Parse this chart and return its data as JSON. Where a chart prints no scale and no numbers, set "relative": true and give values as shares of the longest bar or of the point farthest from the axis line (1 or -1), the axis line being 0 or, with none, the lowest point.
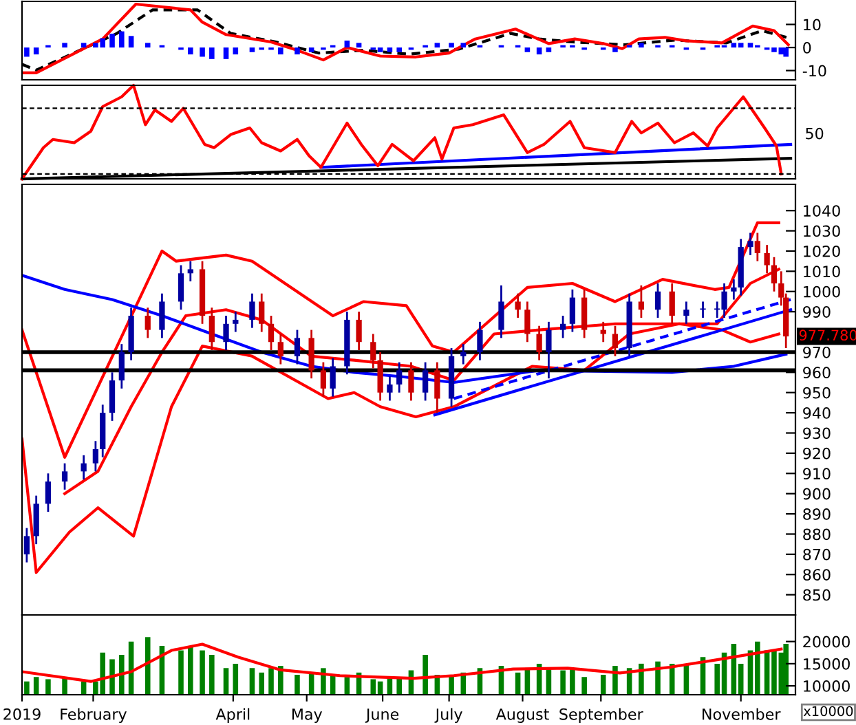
{
  "chart_data": [
    {
      "type": "line",
      "xlim": [
        "2019-01-02",
        "2019-11-24"
      ],
      "ylim": [
        -14,
        20
      ],
      "yticks": [
        10,
        0,
        -10
      ],
      "tick_labels": "y",
      "series": [
        {
          "type": "bar",
          "color": "#0000ff",
          "x": [
            "2019-01-04",
            "2019-01-08",
            "2019-01-13",
            "2019-01-20",
            "2019-01-28",
            "2019-02-02",
            "2019-02-05",
            "2019-02-09",
            "2019-02-13",
            "2019-02-17",
            "2019-02-24",
            "2019-03-02",
            "2019-03-10",
            "2019-03-14",
            "2019-03-19",
            "2019-03-23",
            "2019-03-29",
            "2019-04-02",
            "2019-04-09",
            "2019-04-13",
            "2019-04-17",
            "2019-04-21",
            "2019-04-28",
            "2019-05-04",
            "2019-05-09",
            "2019-05-13",
            "2019-05-19",
            "2019-05-24",
            "2019-05-30",
            "2019-06-02",
            "2019-06-06",
            "2019-06-10",
            "2019-06-15",
            "2019-06-21",
            "2019-06-26",
            "2019-07-02",
            "2019-07-07",
            "2019-07-14",
            "2019-07-23",
            "2019-07-30",
            "2019-08-03",
            "2019-08-08",
            "2019-08-12",
            "2019-08-18",
            "2019-08-22",
            "2019-08-27",
            "2019-09-04",
            "2019-09-09",
            "2019-09-15",
            "2019-09-20",
            "2019-09-27",
            "2019-10-03",
            "2019-10-09",
            "2019-10-16",
            "2019-10-22",
            "2019-10-25",
            "2019-10-29",
            "2019-11-01",
            "2019-11-05",
            "2019-11-08",
            "2019-11-12",
            "2019-11-15",
            "2019-11-18",
            "2019-11-20"
          ],
          "values": [
            -4,
            -3,
            1,
            2,
            2,
            2,
            4,
            6,
            7,
            5,
            2,
            1,
            -1,
            -3,
            -4,
            -5,
            -5,
            -3,
            -2,
            -1,
            -1,
            -3,
            -3,
            -2,
            -1,
            1,
            3,
            2,
            -1,
            -2,
            -2,
            -2,
            -1,
            1,
            2,
            2,
            2,
            1,
            1,
            1,
            -2,
            -3,
            -2,
            1,
            1,
            -1,
            -1,
            -2,
            1,
            2,
            1,
            1,
            -1,
            -1,
            1,
            1,
            2,
            2,
            2,
            1,
            -1,
            -2,
            -3,
            -4
          ]
        },
        {
          "type": "line",
          "color": "#000000",
          "line_style": "dashed",
          "x": [
            "2019-01-02",
            "2019-01-08",
            "2019-02-11",
            "2019-02-26",
            "2019-03-17",
            "2019-03-31",
            "2019-04-19",
            "2019-05-07",
            "2019-05-26",
            "2019-06-14",
            "2019-07-05",
            "2019-07-27",
            "2019-08-08",
            "2019-08-22",
            "2019-09-13",
            "2019-10-04",
            "2019-10-26",
            "2019-11-10",
            "2019-11-21"
          ],
          "values": [
            -7.3,
            -9.8,
            6.1,
            16.3,
            16.3,
            6.1,
            2.4,
            -2.4,
            -1.2,
            -2.9,
            -0.7,
            6.1,
            3.7,
            2.4,
            1.2,
            3.2,
            2,
            7.3,
            4.2
          ]
        },
        {
          "type": "line",
          "color": "#ff0000",
          "line_style": "solid",
          "x": [
            "2019-01-02",
            "2019-01-08",
            "2019-02-05",
            "2019-02-19",
            "2019-03-14",
            "2019-03-19",
            "2019-03-29",
            "2019-04-17",
            "2019-04-28",
            "2019-05-09",
            "2019-05-19",
            "2019-06-02",
            "2019-06-17",
            "2019-07-01",
            "2019-07-12",
            "2019-07-29",
            "2019-08-12",
            "2019-08-23",
            "2019-09-04",
            "2019-09-12",
            "2019-09-19",
            "2019-09-30",
            "2019-10-09",
            "2019-10-24",
            "2019-11-06",
            "2019-11-15",
            "2019-11-21"
          ],
          "values": [
            -11,
            -11,
            3.7,
            18.8,
            16.3,
            11,
            5.6,
            2.4,
            -1.2,
            -5.4,
            0,
            -3.7,
            -4.1,
            -2.4,
            3.7,
            8,
            1.7,
            3.7,
            1.7,
            -0.5,
            3.7,
            4.4,
            2.9,
            2,
            9.3,
            7.3,
            1.2
          ]
        }
      ]
    },
    {
      "type": "line",
      "relative": true,
      "xlim": [
        "2019-01-02",
        "2019-11-24"
      ],
      "tick_labels": false,
      "annotations": [
        "50"
      ],
      "ref_lines": [
        {
          "axis": "y",
          "value": 0.754,
          "color": "#000000",
          "line_style": "dashed"
        },
        {
          "axis": "y",
          "value": 0.053,
          "color": "#000000",
          "line_style": "dashed"
        }
      ],
      "series": [
        {
          "color": "#000000",
          "x": [
            "2019-01-02",
            "2019-11-22"
          ],
          "values": [
            0,
            0.219
          ]
        },
        {
          "color": "#0000ff",
          "x": [
            "2019-05-08",
            "2019-11-22"
          ],
          "values": [
            0.123,
            0.368
          ]
        },
        {
          "color": "#ff0000",
          "x": [
            "2019-01-02",
            "2019-01-11",
            "2019-01-15",
            "2019-01-24",
            "2019-01-31",
            "2019-02-05",
            "2019-02-13",
            "2019-02-18",
            "2019-02-23",
            "2019-02-27",
            "2019-03-06",
            "2019-03-11",
            "2019-03-20",
            "2019-03-24",
            "2019-03-31",
            "2019-04-08",
            "2019-04-13",
            "2019-04-21",
            "2019-04-28",
            "2019-05-03",
            "2019-05-08",
            "2019-05-19",
            "2019-05-25",
            "2019-06-01",
            "2019-06-07",
            "2019-06-16",
            "2019-06-25",
            "2019-06-28",
            "2019-07-03",
            "2019-07-11",
            "2019-07-24",
            "2019-08-03",
            "2019-08-10",
            "2019-08-21",
            "2019-08-27",
            "2019-09-09",
            "2019-09-16",
            "2019-09-20",
            "2019-09-27",
            "2019-10-04",
            "2019-10-12",
            "2019-10-18",
            "2019-10-22",
            "2019-11-02",
            "2019-11-11",
            "2019-11-16",
            "2019-11-18"
          ],
          "values": [
            0,
            0.333,
            0.421,
            0.386,
            0.509,
            0.772,
            0.877,
            1,
            0.579,
            0.737,
            0.614,
            0.754,
            0.368,
            0.333,
            0.474,
            0.544,
            0.386,
            0.298,
            0.421,
            0.246,
            0.123,
            0.596,
            0.368,
            0.14,
            0.368,
            0.193,
            0.439,
            0.211,
            0.544,
            0.579,
            0.684,
            0.281,
            0.368,
            0.614,
            0.333,
            0.281,
            0.614,
            0.491,
            0.596,
            0.386,
            0.491,
            0.351,
            0.544,
            0.877,
            0.544,
            0.351,
            0.053
          ]
        }
      ]
    },
    {
      "type": "candlestick",
      "xlim": [
        "2019-01-02",
        "2019-11-24"
      ],
      "ylim": [
        840,
        1053
      ],
      "yticks": [
        850,
        860,
        870,
        880,
        890,
        900,
        910,
        920,
        930,
        940,
        950,
        960,
        970,
        990,
        1000,
        1010,
        1020,
        1030,
        1040
      ],
      "tick_labels": "y",
      "x": [
        "2019-01-04",
        "2019-01-08",
        "2019-01-13",
        "2019-01-20",
        "2019-01-28",
        "2019-02-02",
        "2019-02-05",
        "2019-02-09",
        "2019-02-13",
        "2019-02-17",
        "2019-02-24",
        "2019-03-02",
        "2019-03-10",
        "2019-03-14",
        "2019-03-19",
        "2019-03-23",
        "2019-03-29",
        "2019-04-02",
        "2019-04-09",
        "2019-04-13",
        "2019-04-17",
        "2019-04-21",
        "2019-04-28",
        "2019-05-04",
        "2019-05-09",
        "2019-05-13",
        "2019-05-19",
        "2019-05-24",
        "2019-05-30",
        "2019-06-02",
        "2019-06-06",
        "2019-06-10",
        "2019-06-15",
        "2019-06-21",
        "2019-06-26",
        "2019-07-02",
        "2019-07-07",
        "2019-07-14",
        "2019-07-23",
        "2019-07-30",
        "2019-08-03",
        "2019-08-08",
        "2019-08-12",
        "2019-08-18",
        "2019-08-22",
        "2019-08-27",
        "2019-09-04",
        "2019-09-09",
        "2019-09-15",
        "2019-09-20",
        "2019-09-27",
        "2019-10-03",
        "2019-10-09",
        "2019-10-16",
        "2019-10-22",
        "2019-10-25",
        "2019-10-29",
        "2019-11-01",
        "2019-11-05",
        "2019-11-08",
        "2019-11-12",
        "2019-11-15",
        "2019-11-18",
        "2019-11-20"
      ],
      "ohlc": [
        [
          870,
          883,
          866,
          879
        ],
        [
          879,
          899,
          875,
          895
        ],
        [
          895,
          910,
          891,
          906
        ],
        [
          906,
          915,
          902,
          911
        ],
        [
          911,
          919,
          907,
          915
        ],
        [
          915,
          926,
          911,
          922
        ],
        [
          922,
          944,
          918,
          940
        ],
        [
          940,
          960,
          936,
          956
        ],
        [
          956,
          974,
          952,
          970
        ],
        [
          970,
          992,
          966,
          988
        ],
        [
          988,
          992,
          977,
          981
        ],
        [
          981,
          999,
          977,
          995
        ],
        [
          995,
          1013,
          991,
          1009
        ],
        [
          1009,
          1015,
          1005,
          1011
        ],
        [
          1011,
          1015,
          984,
          988
        ],
        [
          988,
          992,
          971,
          975
        ],
        [
          975,
          988,
          971,
          984
        ],
        [
          984,
          990,
          980,
          986
        ],
        [
          986,
          999,
          982,
          995
        ],
        [
          995,
          999,
          980,
          984
        ],
        [
          984,
          988,
          971,
          975
        ],
        [
          975,
          979,
          964,
          968
        ],
        [
          968,
          981,
          964,
          977
        ],
        [
          977,
          981,
          957,
          961
        ],
        [
          961,
          965,
          948,
          952
        ],
        [
          952,
          967,
          948,
          963
        ],
        [
          963,
          990,
          959,
          986
        ],
        [
          986,
          990,
          971,
          975
        ],
        [
          975,
          979,
          962,
          966
        ],
        [
          966,
          970,
          946,
          950
        ],
        [
          950,
          958,
          946,
          954
        ],
        [
          954,
          965,
          950,
          961
        ],
        [
          961,
          965,
          946,
          950
        ],
        [
          950,
          965,
          946,
          961
        ],
        [
          961,
          965,
          940,
          947
        ],
        [
          947,
          972,
          943,
          968
        ],
        [
          968,
          974,
          964,
          970
        ],
        [
          970,
          985,
          966,
          981
        ],
        [
          981,
          1003,
          977,
          995
        ],
        [
          995,
          999,
          987,
          991
        ],
        [
          991,
          995,
          975,
          979
        ],
        [
          979,
          983,
          966,
          970
        ],
        [
          970,
          985,
          957,
          981
        ],
        [
          981,
          988,
          977,
          984
        ],
        [
          984,
          1001,
          980,
          997
        ],
        [
          997,
          1001,
          977,
          981
        ],
        [
          981,
          985,
          975,
          979
        ],
        [
          979,
          983,
          968,
          972
        ],
        [
          972,
          999,
          968,
          995
        ],
        [
          995,
          1003,
          987,
          991
        ],
        [
          991,
          1004,
          987,
          1000
        ],
        [
          1000,
          1004,
          984,
          988
        ],
        [
          988,
          995,
          984,
          991
        ],
        [
          991,
          995,
          987,
          991
        ],
        [
          991,
          995,
          987,
          991
        ],
        [
          991,
          1004,
          987,
          1000
        ],
        [
          1000,
          1006,
          996,
          1002
        ],
        [
          1002,
          1026,
          998,
          1022
        ],
        [
          1022,
          1029,
          1018,
          1025
        ],
        [
          1025,
          1029,
          1015,
          1019
        ],
        [
          1019,
          1023,
          1009,
          1013
        ],
        [
          1013,
          1017,
          1000,
          1004
        ],
        [
          1004,
          1010,
          993,
          997
        ],
        [
          997,
          999,
          972,
          977.78
        ]
      ],
      "colors": [
        "#0000a0",
        "#0000a0",
        "#0000a0",
        "#0000a0",
        "#0000a0",
        "#0000a0",
        "#0000a0",
        "#0000a0",
        "#0000a0",
        "#0000a0",
        "#cc0000",
        "#0000a0",
        "#0000a0",
        "#0000a0",
        "#cc0000",
        "#cc0000",
        "#0000a0",
        "#0000a0",
        "#0000a0",
        "#cc0000",
        "#cc0000",
        "#cc0000",
        "#0000a0",
        "#cc0000",
        "#cc0000",
        "#0000a0",
        "#0000a0",
        "#cc0000",
        "#cc0000",
        "#cc0000",
        "#0000a0",
        "#0000a0",
        "#cc0000",
        "#0000a0",
        "#cc0000",
        "#0000a0",
        "#0000a0",
        "#0000a0",
        "#0000a0",
        "#cc0000",
        "#cc0000",
        "#cc0000",
        "#0000a0",
        "#0000a0",
        "#0000a0",
        "#cc0000",
        "#cc0000",
        "#cc0000",
        "#0000a0",
        "#cc0000",
        "#0000a0",
        "#cc0000",
        "#0000a0",
        "#0000a0",
        "#0000a0",
        "#0000a0",
        "#0000a0",
        "#0000a0",
        "#0000a0",
        "#cc0000",
        "#cc0000",
        "#cc0000",
        "#cc0000",
        "#cc0000"
      ],
      "ref_lines": [
        {
          "axis": "y",
          "value": 970,
          "color": "#000000",
          "line_style": "solid"
        },
        {
          "axis": "y",
          "value": 961,
          "color": "#000000",
          "line_style": "solid"
        }
      ],
      "annotations": [
        {
          "text": "977.780",
          "x": "2019-11-20",
          "y": 977.78
        }
      ],
      "series": [
        {
          "type": "line",
          "color": "#ff0000",
          "x": [
            "2019-01-02",
            "2019-01-20",
            "2019-03-02",
            "2019-03-08",
            "2019-03-29",
            "2019-04-09",
            "2019-05-13",
            "2019-05-26",
            "2019-06-13",
            "2019-06-24",
            "2019-07-03",
            "2019-08-03",
            "2019-08-22",
            "2019-09-09",
            "2019-09-29",
            "2019-10-21",
            "2019-10-27",
            "2019-11-08",
            "2019-11-17"
          ],
          "values": [
            981,
            918,
            1020,
            1015,
            1018,
            1015,
            988,
            995,
            993,
            973,
            970,
            1002,
            1004,
            995,
            1006,
            1001,
            1002,
            1034,
            1034
          ]
        },
        {
          "type": "line",
          "color": "#ff0000",
          "x": [
            "2019-01-20",
            "2019-02-03",
            "2019-02-17",
            "2019-03-02",
            "2019-03-12",
            "2019-03-29",
            "2019-04-13",
            "2019-05-04",
            "2019-05-22",
            "2019-06-15",
            "2019-07-03",
            "2019-07-20",
            "2019-08-08",
            "2019-09-09",
            "2019-10-22",
            "2019-11-05",
            "2019-11-17"
          ],
          "values": [
            900,
            911,
            943,
            970,
            988,
            991,
            986,
            968,
            966,
            963,
            956,
            979,
            981,
            984,
            984,
            1004,
            1011
          ]
        },
        {
          "type": "line",
          "color": "#ff0000",
          "x": [
            "2019-01-02",
            "2019-01-08",
            "2019-01-22",
            "2019-02-03",
            "2019-02-18",
            "2019-03-06",
            "2019-03-19",
            "2019-04-09",
            "2019-05-11",
            "2019-05-22",
            "2019-06-02",
            "2019-06-17",
            "2019-07-03",
            "2019-08-05",
            "2019-08-27",
            "2019-09-15",
            "2019-10-06",
            "2019-10-24",
            "2019-11-05",
            "2019-11-17"
          ],
          "values": [
            927,
            861,
            881,
            893,
            879,
            943,
            973,
            968,
            947,
            950,
            943,
            938,
            943,
            963,
            961,
            979,
            984,
            981,
            975,
            979
          ]
        },
        {
          "type": "line",
          "color": "#0000ff",
          "x": [
            "2019-01-02",
            "2019-01-20",
            "2019-02-09",
            "2019-03-02",
            "2019-03-23",
            "2019-04-13",
            "2019-05-04",
            "2019-05-22",
            "2019-06-10",
            "2019-07-03",
            "2019-08-08",
            "2019-10-03",
            "2019-10-29",
            "2019-11-20"
          ],
          "values": [
            1008,
            1001,
            996,
            988,
            979,
            970,
            963,
            960,
            958,
            955,
            961,
            960,
            963,
            969
          ]
        },
        {
          "type": "line",
          "color": "#0000ff",
          "x": [
            "2019-06-25",
            "2019-11-22"
          ],
          "values": [
            939,
            991
          ]
        },
        {
          "type": "line",
          "color": "#0000ff",
          "line_style": "dashed",
          "x": [
            "2019-07-03",
            "2019-11-22"
          ],
          "values": [
            947,
            996
          ]
        }
      ]
    },
    {
      "type": "bar",
      "xlim": [
        "2019-01-02",
        "2019-11-24"
      ],
      "ylim": [
        8000,
        26000
      ],
      "yticks": [
        10000,
        15000,
        20000
      ],
      "xticks": [
        {
          "value": "2019-01-02",
          "label": "2019"
        },
        {
          "value": "2019-02-01",
          "label": "February"
        },
        {
          "value": "2019-04-01",
          "label": "April"
        },
        {
          "value": "2019-05-02",
          "label": "May"
        },
        {
          "value": "2019-06-03",
          "label": "June"
        },
        {
          "value": "2019-07-01",
          "label": "July"
        },
        {
          "value": "2019-08-01",
          "label": "August"
        },
        {
          "value": "2019-09-03",
          "label": "September"
        },
        {
          "value": "2019-11-01",
          "label": "November"
        }
      ],
      "annotations": [
        "x10000"
      ],
      "series": [
        {
          "type": "bar",
          "color": "#008000",
          "x": [
            "2019-01-04",
            "2019-01-08",
            "2019-01-13",
            "2019-01-20",
            "2019-01-28",
            "2019-02-02",
            "2019-02-05",
            "2019-02-09",
            "2019-02-13",
            "2019-02-17",
            "2019-02-24",
            "2019-03-02",
            "2019-03-10",
            "2019-03-14",
            "2019-03-19",
            "2019-03-23",
            "2019-03-29",
            "2019-04-02",
            "2019-04-09",
            "2019-04-13",
            "2019-04-17",
            "2019-04-21",
            "2019-04-28",
            "2019-05-04",
            "2019-05-09",
            "2019-05-13",
            "2019-05-19",
            "2019-05-24",
            "2019-05-30",
            "2019-06-02",
            "2019-06-06",
            "2019-06-10",
            "2019-06-15",
            "2019-06-21",
            "2019-06-26",
            "2019-07-02",
            "2019-07-07",
            "2019-07-14",
            "2019-07-23",
            "2019-07-30",
            "2019-08-03",
            "2019-08-08",
            "2019-08-12",
            "2019-08-18",
            "2019-08-22",
            "2019-08-27",
            "2019-09-04",
            "2019-09-09",
            "2019-09-15",
            "2019-09-20",
            "2019-09-27",
            "2019-10-03",
            "2019-10-09",
            "2019-10-16",
            "2019-10-22",
            "2019-10-25",
            "2019-10-29",
            "2019-11-01",
            "2019-11-05",
            "2019-11-08",
            "2019-11-12",
            "2019-11-15",
            "2019-11-18",
            "2019-11-20"
          ],
          "values": [
            11000,
            12000,
            11500,
            12000,
            11000,
            11000,
            17500,
            16000,
            17000,
            20000,
            21000,
            19000,
            18000,
            19000,
            18000,
            17000,
            14000,
            15000,
            14000,
            13000,
            14000,
            14500,
            12500,
            13000,
            14000,
            12500,
            12000,
            13000,
            11500,
            11000,
            12000,
            12000,
            13500,
            17000,
            12500,
            12500,
            13000,
            14000,
            14500,
            13000,
            14000,
            15000,
            14000,
            13500,
            14000,
            12000,
            12500,
            14500,
            14000,
            15000,
            15500,
            15000,
            15000,
            16500,
            15000,
            17500,
            19500,
            15000,
            18000,
            20000,
            18000,
            18000,
            17500,
            19500
          ]
        },
        {
          "type": "line",
          "color": "#ff0000",
          "x": [
            "2019-01-02",
            "2019-01-31",
            "2019-02-17",
            "2019-03-06",
            "2019-03-19",
            "2019-04-03",
            "2019-04-21",
            "2019-05-16",
            "2019-06-16",
            "2019-07-03",
            "2019-07-28",
            "2019-08-20",
            "2019-09-11",
            "2019-10-02",
            "2019-10-22",
            "2019-11-18"
          ],
          "values": [
            13200,
            11000,
            13200,
            18000,
            19400,
            16500,
            13600,
            12300,
            11700,
            12300,
            13800,
            14000,
            12900,
            14200,
            15900,
            18300
          ]
        }
      ]
    }
  ]
}
